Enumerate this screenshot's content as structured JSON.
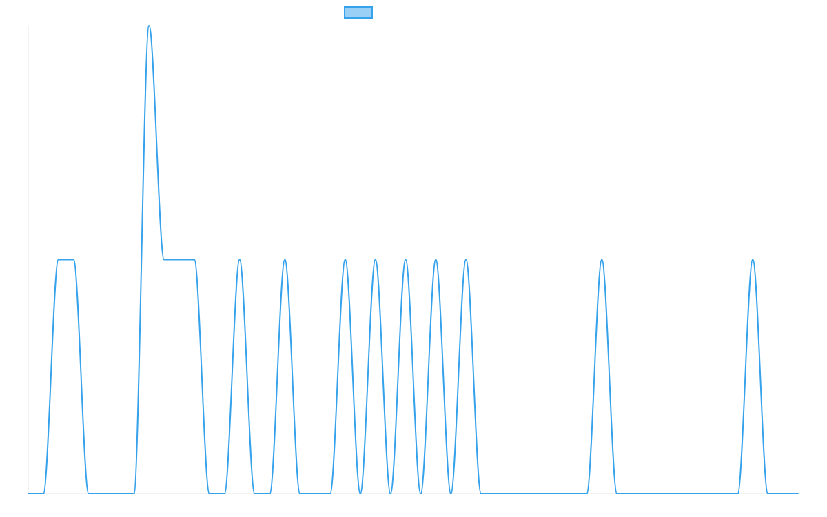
{
  "chart_data": {
    "type": "line",
    "title": "",
    "xlabel": "",
    "ylabel": "",
    "legend_position": "top-center",
    "grid": false,
    "xlim": [
      0,
      51
    ],
    "ylim": [
      0,
      2
    ],
    "series": [
      {
        "color": "#36a2eb",
        "fill": "#9ad0f5",
        "x": [
          0,
          1,
          2,
          3,
          4,
          5,
          6,
          7,
          8,
          9,
          10,
          11,
          12,
          13,
          14,
          15,
          16,
          17,
          18,
          19,
          20,
          21,
          22,
          23,
          24,
          25,
          26,
          27,
          28,
          29,
          30,
          31,
          32,
          33,
          34,
          35,
          36,
          37,
          38,
          39,
          40,
          41,
          42,
          43,
          44,
          45,
          46,
          47,
          48,
          49,
          50,
          51
        ],
        "y": [
          0,
          0,
          1,
          1,
          0,
          0,
          0,
          0,
          2,
          1,
          1,
          1,
          0,
          0,
          1,
          0,
          0,
          1,
          0,
          0,
          0,
          1,
          0,
          1,
          0,
          1,
          0,
          1,
          0,
          1,
          0,
          0,
          0,
          0,
          0,
          0,
          0,
          0,
          1,
          0,
          0,
          0,
          0,
          0,
          0,
          0,
          0,
          0,
          1,
          0,
          0,
          0
        ]
      }
    ]
  }
}
